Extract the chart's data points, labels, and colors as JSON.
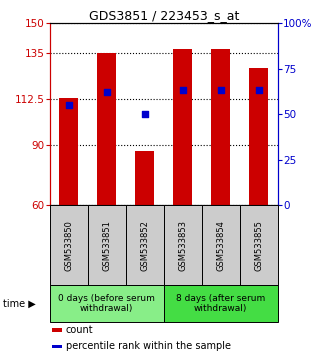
{
  "title": "GDS3851 / 223453_s_at",
  "samples": [
    "GSM533850",
    "GSM533851",
    "GSM533852",
    "GSM533853",
    "GSM533854",
    "GSM533855"
  ],
  "counts": [
    113.0,
    135.0,
    87.0,
    137.0,
    137.0,
    128.0
  ],
  "percentiles": [
    55.0,
    62.0,
    50.0,
    63.0,
    63.0,
    63.0
  ],
  "bar_color": "#cc0000",
  "dot_color": "#0000cc",
  "ylim_left": [
    60,
    150
  ],
  "ylim_right": [
    0,
    100
  ],
  "yticks_left": [
    60,
    90,
    112.5,
    135,
    150
  ],
  "ytick_labels_left": [
    "60",
    "90",
    "112.5",
    "135",
    "150"
  ],
  "yticks_right": [
    0,
    25,
    50,
    75,
    100
  ],
  "ytick_labels_right": [
    "0",
    "25",
    "50",
    "75",
    "100%"
  ],
  "groups": [
    {
      "label": "0 days (before serum\nwithdrawal)",
      "indices": [
        0,
        1,
        2
      ],
      "color": "#88ee88"
    },
    {
      "label": "8 days (after serum\nwithdrawal)",
      "indices": [
        3,
        4,
        5
      ],
      "color": "#44dd44"
    }
  ],
  "sample_box_color": "#cccccc",
  "legend_items": [
    {
      "label": "count",
      "color": "#cc0000"
    },
    {
      "label": "percentile rank within the sample",
      "color": "#0000cc"
    }
  ],
  "bar_width": 0.5,
  "axis_color_left": "#cc0000",
  "axis_color_right": "#0000cc"
}
